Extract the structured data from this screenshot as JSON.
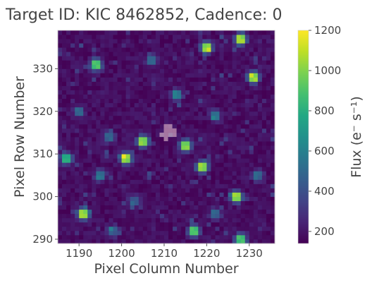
{
  "chart_data": {
    "type": "heatmap",
    "title": "Target ID: KIC 8462852, Cadence: 0",
    "xlabel": "Pixel Column Number",
    "ylabel": "Pixel Row Number",
    "colorbar_label": "Flux (e⁻ s⁻¹)",
    "xlim": [
      1185,
      1236
    ],
    "ylim": [
      289,
      339
    ],
    "x_ticks": [
      1190,
      1200,
      1210,
      1220,
      1230
    ],
    "y_ticks": [
      290,
      300,
      310,
      320,
      330
    ],
    "colorbar_range": [
      140,
      1200
    ],
    "colorbar_ticks": [
      200,
      400,
      600,
      800,
      1000,
      1200
    ],
    "colormap": "viridis",
    "background_level": 180,
    "target_aperture_pixels": [
      [
        1210,
        316
      ],
      [
        1211,
        316
      ],
      [
        1210,
        315
      ],
      [
        1211,
        315
      ],
      [
        1212,
        315
      ],
      [
        1209,
        314
      ],
      [
        1210,
        314
      ],
      [
        1211,
        314
      ],
      [
        1212,
        314
      ],
      [
        1210,
        313
      ]
    ],
    "stars": [
      {
        "x": 1194,
        "y": 331,
        "peak": 1000
      },
      {
        "x": 1213,
        "y": 324,
        "peak": 550
      },
      {
        "x": 1205,
        "y": 313,
        "peak": 1150
      },
      {
        "x": 1215,
        "y": 312,
        "peak": 1150
      },
      {
        "x": 1201,
        "y": 309,
        "peak": 1200
      },
      {
        "x": 1219,
        "y": 307,
        "peak": 1200
      },
      {
        "x": 1187,
        "y": 309,
        "peak": 850
      },
      {
        "x": 1222,
        "y": 319,
        "peak": 500
      },
      {
        "x": 1220,
        "y": 335,
        "peak": 1200
      },
      {
        "x": 1228,
        "y": 337,
        "peak": 1200
      },
      {
        "x": 1231,
        "y": 328,
        "peak": 1200
      },
      {
        "x": 1227,
        "y": 300,
        "peak": 1200
      },
      {
        "x": 1191,
        "y": 296,
        "peak": 1200
      },
      {
        "x": 1217,
        "y": 292,
        "peak": 1000
      },
      {
        "x": 1228,
        "y": 290,
        "peak": 1000
      },
      {
        "x": 1195,
        "y": 305,
        "peak": 500
      },
      {
        "x": 1197,
        "y": 314,
        "peak": 400
      },
      {
        "x": 1190,
        "y": 320,
        "peak": 400
      },
      {
        "x": 1222,
        "y": 296,
        "peak": 400
      },
      {
        "x": 1232,
        "y": 305,
        "peak": 400
      },
      {
        "x": 1203,
        "y": 299,
        "peak": 380
      },
      {
        "x": 1198,
        "y": 292,
        "peak": 380
      },
      {
        "x": 1207,
        "y": 332,
        "peak": 380
      }
    ]
  },
  "colors": {
    "background": "#ffffff",
    "text": "#444444",
    "aperture_fill": "#f4c9d4"
  }
}
